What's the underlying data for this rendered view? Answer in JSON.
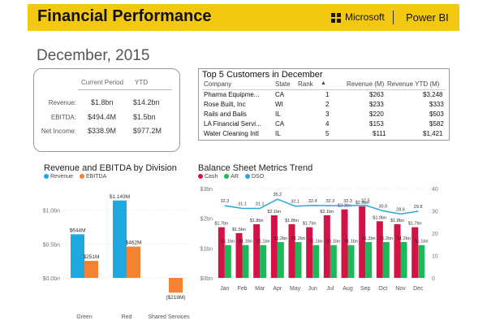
{
  "header": {
    "title": "Financial Performance",
    "brand": "Microsoft",
    "product": "Power BI"
  },
  "date": "December, 2015",
  "kpi": {
    "col1": "Current Period",
    "col2": "YTD",
    "rows": [
      {
        "label": "Revenue:",
        "current": "$1.8bn",
        "ytd": "$14.2bn"
      },
      {
        "label": "EBITDA:",
        "current": "$494.4M",
        "ytd": "$1.5bn"
      },
      {
        "label": "Net Income:",
        "current": "$338.9M",
        "ytd": "$977.2M"
      }
    ]
  },
  "top5": {
    "title": "Top 5 Customers in December",
    "headers": [
      "Company",
      "State",
      "Rank",
      "",
      "Revenue (M)",
      "Revenue YTD (M)"
    ],
    "sort_icon": "sort-up-icon",
    "rows": [
      [
        "Pharma Equipme...",
        "CA",
        "1",
        "$263",
        "$3,248"
      ],
      [
        "Rose Built, Inc",
        "WI",
        "2",
        "$233",
        "$333"
      ],
      [
        "Rails and Bails",
        "IL",
        "3",
        "$220",
        "$503"
      ],
      [
        "LA Financial Servi...",
        "CA",
        "4",
        "$153",
        "$582"
      ],
      [
        "Water Cleaning Intl",
        "IL",
        "5",
        "$111",
        "$1,421"
      ]
    ]
  },
  "chart_data": [
    {
      "type": "bar",
      "title": "Revenue and EBITDA by Division",
      "categories": [
        "Green",
        "Red",
        "Shared Services"
      ],
      "series": [
        {
          "name": "Revenue",
          "color": "#1fa8e0",
          "values": [
            644,
            1143,
            null
          ],
          "labels": [
            "$644M",
            "$1.143M",
            ""
          ]
        },
        {
          "name": "EBITDA",
          "color": "#f58231",
          "values": [
            251,
            462,
            -218
          ],
          "labels": [
            "$251M",
            "$462M",
            "($218M)"
          ]
        }
      ],
      "yticks": [
        "$1.0bn",
        "$0.5bn",
        "$0.0bn"
      ],
      "ylim": [
        -300,
        1200
      ]
    },
    {
      "type": "bar+line",
      "title": "Balance Sheet Metrics Trend",
      "categories": [
        "Jan",
        "Feb",
        "Mar",
        "Apr",
        "May",
        "Jun",
        "Jul",
        "Aug",
        "Sep",
        "Oct",
        "Nov",
        "Dec"
      ],
      "series": [
        {
          "name": "Cash",
          "color": "#d41246",
          "values": [
            1.7,
            1.5,
            1.8,
            2.1,
            1.8,
            1.7,
            2.1,
            2.3,
            2.4,
            1.9,
            1.8,
            1.7
          ],
          "labels": [
            "$1.7bn",
            "$1.5bn",
            "$1.8bn",
            "$2.1bn",
            "$1.8bn",
            "$1.7bn",
            "$2.1bn",
            "$2.3bn",
            "$2.4bn",
            "$1.9bn",
            "$1.8bn",
            "$1.7bn"
          ]
        },
        {
          "name": "AR",
          "color": "#1eb85a",
          "values": [
            1.1,
            1.1,
            1.1,
            1.2,
            1.2,
            1.1,
            1.1,
            1.1,
            1.2,
            1.2,
            1.2,
            1.1
          ],
          "labels": [
            "$1.1bn",
            "$1.1bn",
            "$1.1bn",
            "$1.2bn",
            "$1.2bn",
            "$1.1bn",
            "$1.1bn",
            "$1.1bn",
            "$1.2bn",
            "$1.2bn",
            "$1.2bn",
            "$1.1bn"
          ]
        },
        {
          "name": "DSO",
          "color": "#2aa8dd",
          "values": [
            32.3,
            31.1,
            31.1,
            35.2,
            32.1,
            32.4,
            32.3,
            32.3,
            32.5,
            30.0,
            28.6,
            29.8
          ],
          "labels": [
            "32.3",
            "31.1",
            "31.1",
            "35.2",
            "32.1",
            "32.4",
            "32.3",
            "32.3",
            "32.5",
            "30.0",
            "28.6",
            "29.8"
          ]
        }
      ],
      "yticks_left": [
        "$3bn",
        "$2bn",
        "$1bn",
        "$0bn"
      ],
      "yticks_right": [
        "40",
        "30",
        "20",
        "10",
        "0"
      ],
      "ylim_left": [
        0,
        3
      ],
      "ylim_right": [
        0,
        40
      ]
    }
  ]
}
